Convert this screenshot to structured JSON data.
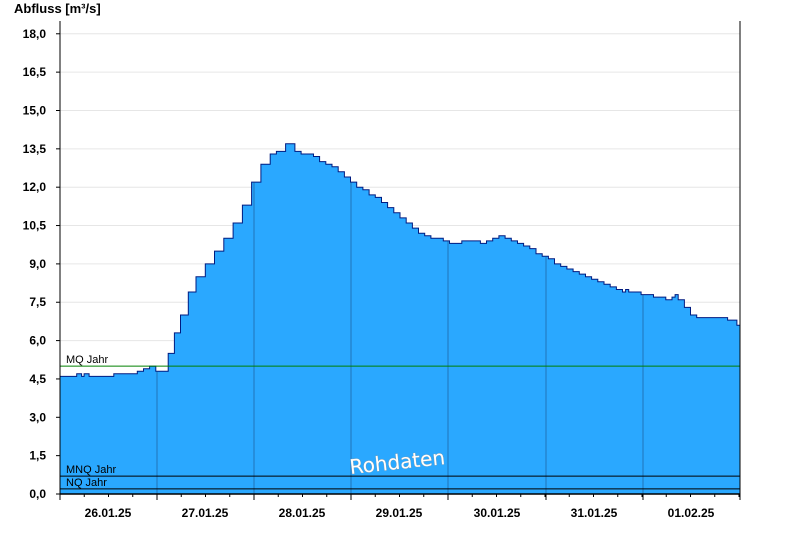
{
  "chart_data": {
    "type": "area",
    "ylabel": "Abfluss [m³/s]",
    "ylim": [
      0,
      18.5
    ],
    "yticks": [
      0,
      1.5,
      3,
      4.5,
      6,
      7.5,
      9,
      10.5,
      12,
      13.5,
      15,
      16.5,
      18
    ],
    "ytick_labels": [
      "0,0",
      "1,5",
      "3,0",
      "4,5",
      "6,0",
      "7,5",
      "9,0",
      "10,5",
      "12,0",
      "13,5",
      "15,0",
      "16,5",
      "18,0"
    ],
    "xlim": [
      "25.01.2025 21:00",
      "01.02.2025 23:00"
    ],
    "xtick_labels": [
      "26.01.25",
      "27.01.25",
      "28.01.25",
      "29.01.25",
      "30.01.25",
      "31.01.25",
      "01.02.25"
    ],
    "grid": true,
    "series": [
      {
        "values": [
          [
            0.0,
            4.6
          ],
          [
            1.0,
            4.6
          ],
          [
            1.08,
            4.7
          ],
          [
            1.32,
            4.7
          ],
          [
            1.4,
            4.6
          ],
          [
            1.48,
            4.6
          ],
          [
            1.56,
            4.7
          ],
          [
            1.8,
            4.7
          ],
          [
            1.88,
            4.6
          ],
          [
            3.4,
            4.6
          ],
          [
            3.48,
            4.7
          ],
          [
            4.6,
            4.7
          ],
          [
            5.0,
            4.8
          ],
          [
            5.4,
            4.9
          ],
          [
            5.8,
            5.0
          ],
          [
            6.2,
            4.8
          ],
          [
            6.6,
            4.8
          ],
          [
            7.0,
            5.5
          ],
          [
            7.4,
            6.3
          ],
          [
            7.8,
            7.0
          ],
          [
            8.3,
            7.9
          ],
          [
            8.8,
            8.5
          ],
          [
            9.4,
            9.0
          ],
          [
            10.0,
            9.5
          ],
          [
            10.6,
            10.0
          ],
          [
            11.2,
            10.6
          ],
          [
            11.8,
            11.3
          ],
          [
            12.4,
            12.2
          ],
          [
            13.0,
            12.9
          ],
          [
            13.6,
            13.3
          ],
          [
            14.0,
            13.4
          ],
          [
            14.4,
            13.4
          ],
          [
            14.6,
            13.7
          ],
          [
            14.9,
            13.7
          ],
          [
            15.2,
            13.4
          ],
          [
            15.6,
            13.3
          ],
          [
            16.0,
            13.3
          ],
          [
            16.4,
            13.2
          ],
          [
            16.8,
            13.0
          ],
          [
            17.2,
            12.9
          ],
          [
            17.6,
            12.8
          ],
          [
            18.0,
            12.6
          ],
          [
            18.4,
            12.4
          ],
          [
            18.8,
            12.2
          ],
          [
            19.2,
            12.0
          ],
          [
            19.6,
            11.9
          ],
          [
            20.0,
            11.7
          ],
          [
            20.4,
            11.6
          ],
          [
            20.8,
            11.4
          ],
          [
            21.2,
            11.2
          ],
          [
            21.6,
            11.0
          ],
          [
            22.0,
            10.8
          ],
          [
            22.4,
            10.6
          ],
          [
            22.8,
            10.4
          ],
          [
            23.2,
            10.2
          ],
          [
            23.6,
            10.1
          ],
          [
            24.0,
            10.0
          ],
          [
            24.4,
            10.0
          ],
          [
            24.8,
            9.9
          ],
          [
            25.2,
            9.8
          ],
          [
            25.6,
            9.8
          ],
          [
            26.0,
            9.9
          ],
          [
            26.4,
            9.9
          ],
          [
            26.8,
            9.9
          ],
          [
            27.2,
            9.8
          ],
          [
            27.4,
            9.8
          ],
          [
            27.6,
            9.9
          ],
          [
            28.0,
            10.0
          ],
          [
            28.4,
            10.1
          ],
          [
            28.8,
            10.0
          ],
          [
            29.2,
            9.9
          ],
          [
            29.6,
            9.8
          ],
          [
            30.0,
            9.7
          ],
          [
            30.4,
            9.6
          ],
          [
            30.8,
            9.4
          ],
          [
            31.2,
            9.3
          ],
          [
            31.6,
            9.2
          ],
          [
            32.0,
            9.0
          ],
          [
            32.4,
            8.9
          ],
          [
            32.8,
            8.8
          ],
          [
            33.2,
            8.7
          ],
          [
            33.6,
            8.6
          ],
          [
            34.0,
            8.5
          ],
          [
            34.4,
            8.4
          ],
          [
            34.8,
            8.3
          ],
          [
            35.2,
            8.2
          ],
          [
            35.6,
            8.1
          ],
          [
            36.0,
            8.0
          ],
          [
            36.4,
            7.9
          ],
          [
            36.6,
            8.0
          ],
          [
            36.8,
            7.9
          ],
          [
            37.2,
            7.9
          ],
          [
            37.6,
            7.8
          ],
          [
            38.0,
            7.8
          ],
          [
            38.4,
            7.7
          ],
          [
            38.8,
            7.7
          ],
          [
            39.2,
            7.6
          ],
          [
            39.6,
            7.7
          ],
          [
            39.8,
            7.8
          ],
          [
            40.0,
            7.6
          ],
          [
            40.4,
            7.3
          ],
          [
            40.8,
            7.0
          ],
          [
            41.2,
            6.9
          ],
          [
            41.6,
            6.9
          ],
          [
            42.0,
            6.9
          ],
          [
            42.4,
            6.9
          ],
          [
            42.8,
            6.9
          ],
          [
            43.2,
            6.8
          ],
          [
            43.5,
            6.8
          ],
          [
            43.8,
            6.6
          ],
          [
            44.0,
            6.4
          ]
        ]
      }
    ],
    "reference_lines": [
      {
        "label": "MQ Jahr",
        "value": 5.0,
        "color": "#008000"
      },
      {
        "label": "MNQ Jahr",
        "value": 0.7,
        "color": "#000000"
      },
      {
        "label": "NQ Jahr",
        "value": 0.2,
        "color": "#000000"
      }
    ],
    "watermark": "Rohdaten",
    "colors": {
      "fill": "#2aa8ff",
      "outline": "#001b80",
      "grid": "#e6e6e6",
      "day_divider": "#1a4a80"
    }
  }
}
